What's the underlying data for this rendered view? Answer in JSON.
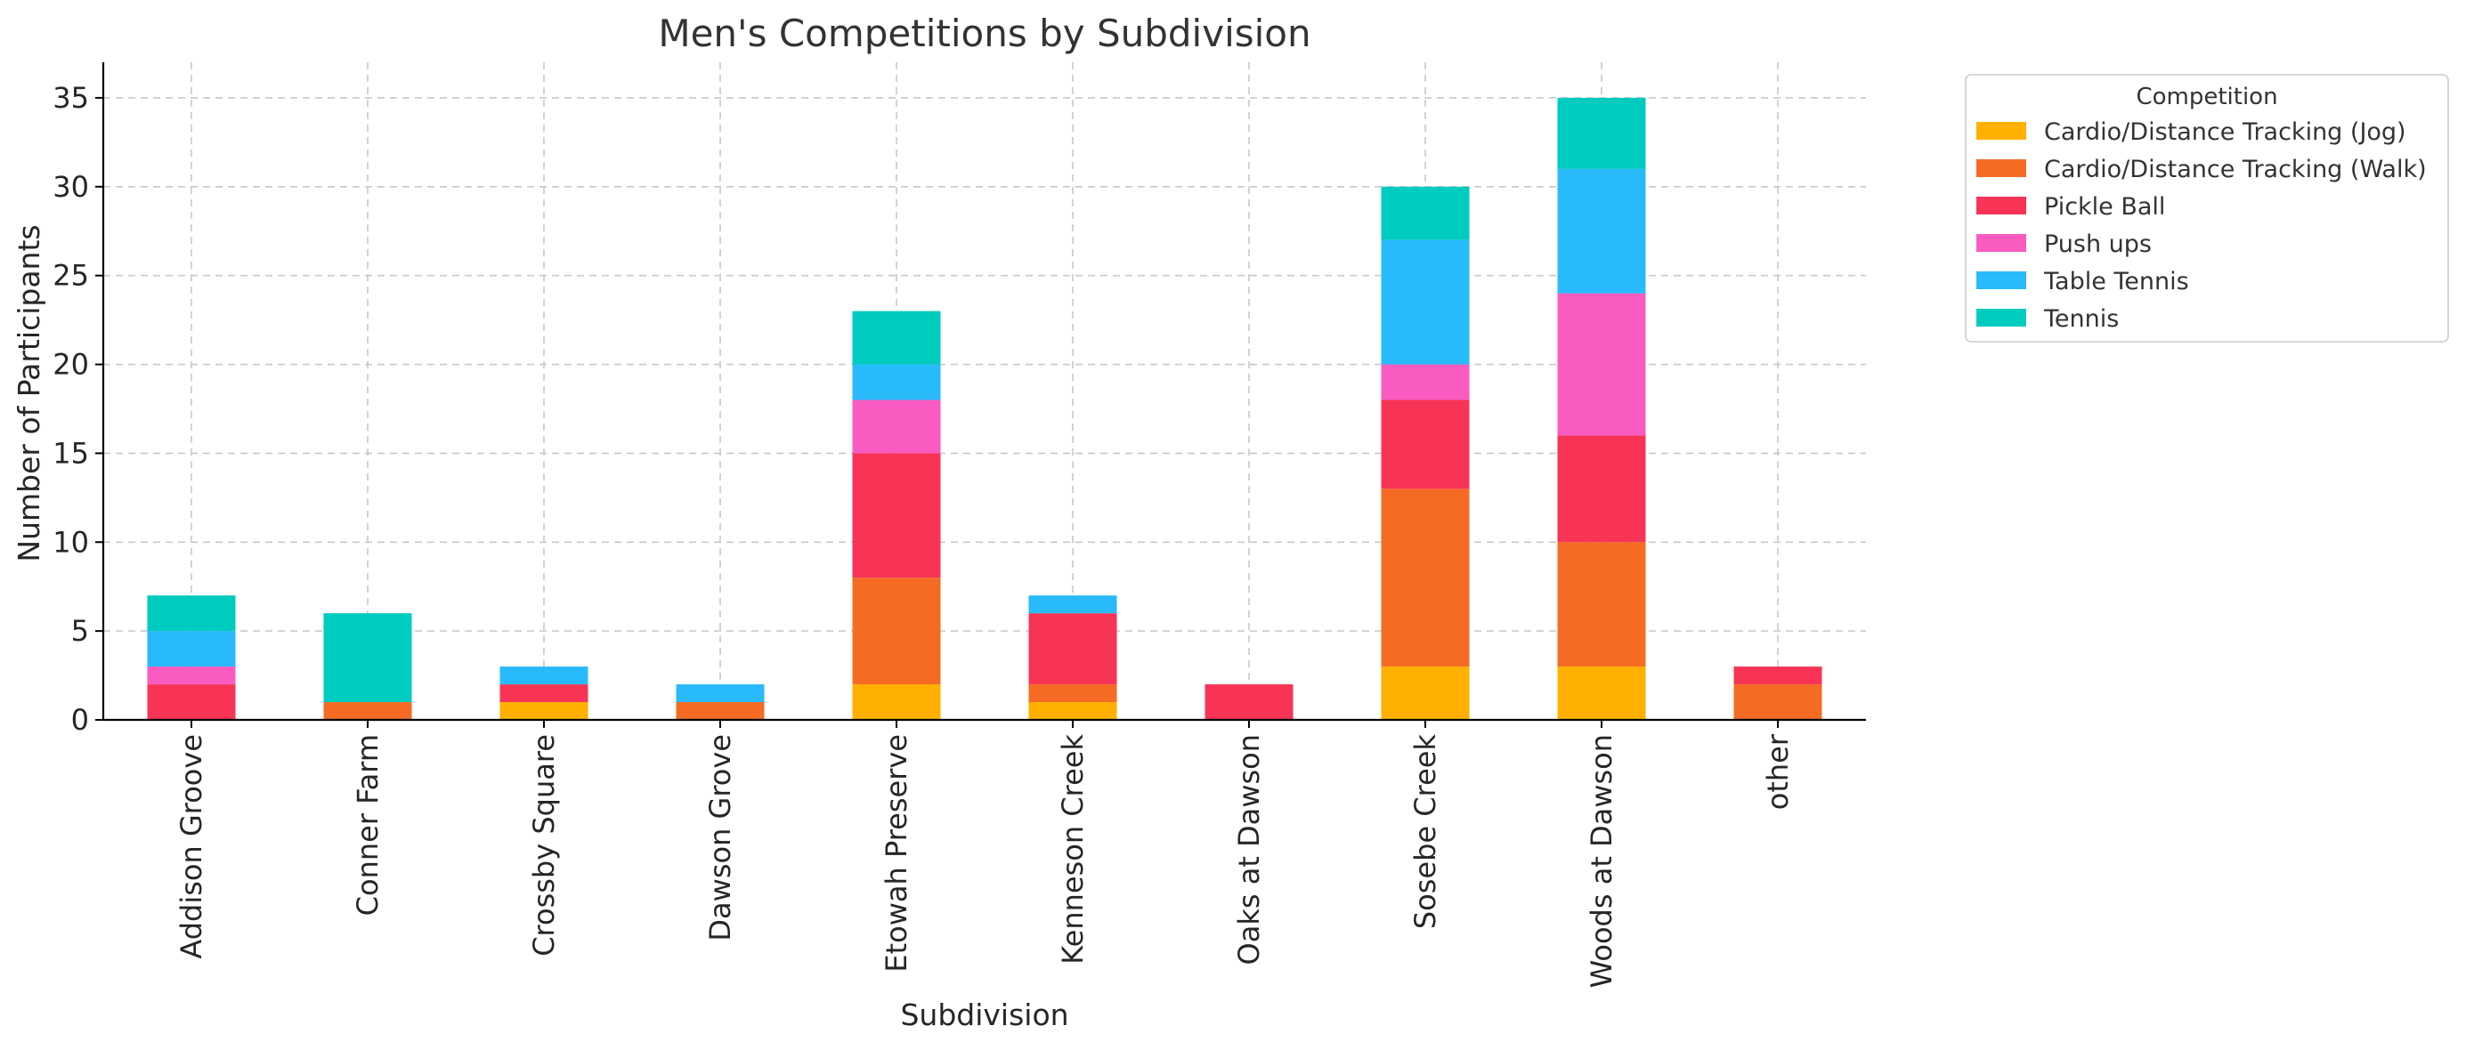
{
  "chart_data": {
    "type": "bar",
    "stacked": true,
    "title": "Men's Competitions by Subdivision",
    "xlabel": "Subdivision",
    "ylabel": "Number of Participants",
    "ylim": [
      0,
      37
    ],
    "yticks": [
      0,
      5,
      10,
      15,
      20,
      25,
      30,
      35
    ],
    "grid": true,
    "legend_title": "Competition",
    "legend_position": "outside-top-right",
    "categories": [
      "Addison Groove",
      "Conner Farm",
      "Crossby Square",
      "Dawson Grove",
      "Etowah Preserve",
      "Kenneson Creek",
      "Oaks at Dawson",
      "Sosebe Creek",
      "Woods at Dawson",
      "other"
    ],
    "series": [
      {
        "name": "Cardio/Distance Tracking (Jog)",
        "color": "#FFB000",
        "values": [
          0,
          0,
          1,
          0,
          2,
          1,
          0,
          3,
          3,
          0
        ]
      },
      {
        "name": "Cardio/Distance Tracking (Walk)",
        "color": "#F56B23",
        "values": [
          0,
          1,
          0,
          1,
          6,
          1,
          0,
          10,
          7,
          2
        ]
      },
      {
        "name": "Pickle Ball",
        "color": "#F73455",
        "values": [
          2,
          0,
          1,
          0,
          7,
          4,
          2,
          5,
          6,
          1
        ]
      },
      {
        "name": "Push ups",
        "color": "#F95BC0",
        "values": [
          1,
          0,
          0,
          0,
          3,
          0,
          0,
          2,
          8,
          0
        ]
      },
      {
        "name": "Table Tennis",
        "color": "#28BAFB",
        "values": [
          2,
          0,
          1,
          1,
          2,
          1,
          0,
          7,
          7,
          0
        ]
      },
      {
        "name": "Tennis",
        "color": "#00CBBF",
        "values": [
          2,
          5,
          0,
          0,
          3,
          0,
          0,
          3,
          4,
          0
        ]
      }
    ]
  }
}
